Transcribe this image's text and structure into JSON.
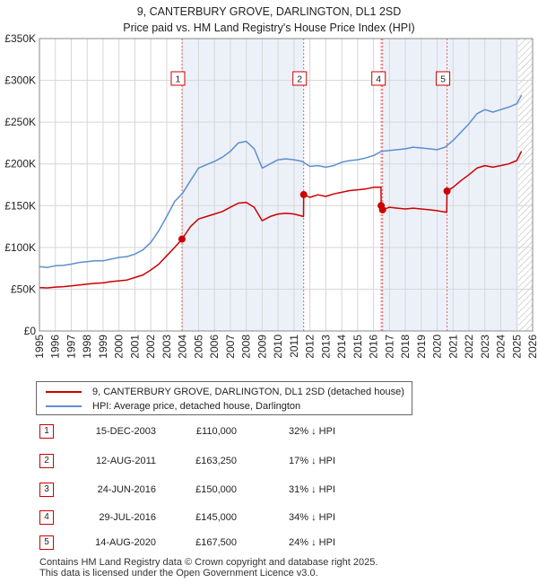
{
  "chart_data": {
    "type": "line",
    "title": "9, CANTERBURY GROVE, DARLINGTON, DL1 2SD",
    "subtitle": "Price paid vs. HM Land Registry's House Price Index (HPI)",
    "xlim": [
      1995,
      2026
    ],
    "ylim": [
      0,
      350000
    ],
    "x_ticks": [
      "1995",
      "1996",
      "1997",
      "1998",
      "1999",
      "2000",
      "2001",
      "2002",
      "2003",
      "2004",
      "2005",
      "2006",
      "2007",
      "2008",
      "2009",
      "2010",
      "2011",
      "2012",
      "2013",
      "2014",
      "2015",
      "2016",
      "2017",
      "2018",
      "2019",
      "2020",
      "2021",
      "2022",
      "2023",
      "2024",
      "2025",
      "2026"
    ],
    "y_ticks": [
      {
        "value": 0,
        "label": "£0"
      },
      {
        "value": 50000,
        "label": "£50K"
      },
      {
        "value": 100000,
        "label": "£100K"
      },
      {
        "value": 150000,
        "label": "£150K"
      },
      {
        "value": 200000,
        "label": "£200K"
      },
      {
        "value": 250000,
        "label": "£250K"
      },
      {
        "value": 300000,
        "label": "£300K"
      },
      {
        "value": 350000,
        "label": "£350K"
      }
    ],
    "grid": true,
    "forecast_start": 2025.1,
    "series": [
      {
        "name": "9, CANTERBURY GROVE, DARLINGTON, DL1 2SD (detached house)",
        "color": "#cc0000",
        "points": [
          [
            1995.0,
            52000
          ],
          [
            1995.5,
            51500
          ],
          [
            1996.0,
            52500
          ],
          [
            1996.5,
            53000
          ],
          [
            1997.0,
            54000
          ],
          [
            1997.5,
            55000
          ],
          [
            1998.0,
            56000
          ],
          [
            1998.5,
            57000
          ],
          [
            1999.0,
            57500
          ],
          [
            1999.5,
            59000
          ],
          [
            2000.0,
            60000
          ],
          [
            2000.5,
            61000
          ],
          [
            2001.0,
            64000
          ],
          [
            2001.5,
            67000
          ],
          [
            2002.0,
            73000
          ],
          [
            2002.5,
            80000
          ],
          [
            2003.0,
            90000
          ],
          [
            2003.5,
            100000
          ],
          [
            2003.96,
            110000
          ],
          [
            2004.5,
            125000
          ],
          [
            2005.0,
            134000
          ],
          [
            2005.5,
            137000
          ],
          [
            2006.0,
            140000
          ],
          [
            2006.5,
            143000
          ],
          [
            2007.0,
            148000
          ],
          [
            2007.5,
            153000
          ],
          [
            2008.0,
            154000
          ],
          [
            2008.5,
            148000
          ],
          [
            2009.0,
            132000
          ],
          [
            2009.5,
            137000
          ],
          [
            2010.0,
            140000
          ],
          [
            2010.5,
            141000
          ],
          [
            2011.0,
            140000
          ],
          [
            2011.6,
            137000
          ],
          [
            2011.61,
            163250
          ],
          [
            2012.0,
            160000
          ],
          [
            2012.5,
            163000
          ],
          [
            2013.0,
            161000
          ],
          [
            2013.5,
            164000
          ],
          [
            2014.0,
            166000
          ],
          [
            2014.5,
            168000
          ],
          [
            2015.0,
            169000
          ],
          [
            2015.5,
            170000
          ],
          [
            2016.0,
            172000
          ],
          [
            2016.47,
            172000
          ],
          [
            2016.48,
            150000
          ],
          [
            2016.57,
            145000
          ],
          [
            2017.0,
            148000
          ],
          [
            2017.5,
            147000
          ],
          [
            2018.0,
            146000
          ],
          [
            2018.5,
            147000
          ],
          [
            2019.0,
            146000
          ],
          [
            2019.5,
            145000
          ],
          [
            2020.0,
            144000
          ],
          [
            2020.6,
            142000
          ],
          [
            2020.62,
            167500
          ],
          [
            2021.0,
            172000
          ],
          [
            2021.5,
            180000
          ],
          [
            2022.0,
            187000
          ],
          [
            2022.5,
            195000
          ],
          [
            2023.0,
            198000
          ],
          [
            2023.5,
            196000
          ],
          [
            2024.0,
            198000
          ],
          [
            2024.5,
            200000
          ],
          [
            2025.0,
            204000
          ],
          [
            2025.3,
            215000
          ]
        ]
      },
      {
        "name": "HPI: Average price, detached house, Darlington",
        "color": "#5b8fd1",
        "points": [
          [
            1995.0,
            77000
          ],
          [
            1995.5,
            76000
          ],
          [
            1996.0,
            78000
          ],
          [
            1996.5,
            78500
          ],
          [
            1997.0,
            80000
          ],
          [
            1997.5,
            82000
          ],
          [
            1998.0,
            83000
          ],
          [
            1998.5,
            84000
          ],
          [
            1999.0,
            84000
          ],
          [
            1999.5,
            86000
          ],
          [
            2000.0,
            88000
          ],
          [
            2000.5,
            89000
          ],
          [
            2001.0,
            92000
          ],
          [
            2001.5,
            97000
          ],
          [
            2002.0,
            106000
          ],
          [
            2002.5,
            120000
          ],
          [
            2003.0,
            137000
          ],
          [
            2003.5,
            155000
          ],
          [
            2004.0,
            165000
          ],
          [
            2004.5,
            180000
          ],
          [
            2005.0,
            195000
          ],
          [
            2005.5,
            199000
          ],
          [
            2006.0,
            203000
          ],
          [
            2006.5,
            208000
          ],
          [
            2007.0,
            215000
          ],
          [
            2007.5,
            225000
          ],
          [
            2008.0,
            227000
          ],
          [
            2008.5,
            218000
          ],
          [
            2009.0,
            195000
          ],
          [
            2009.5,
            200000
          ],
          [
            2010.0,
            205000
          ],
          [
            2010.5,
            206000
          ],
          [
            2011.0,
            205000
          ],
          [
            2011.5,
            203000
          ],
          [
            2012.0,
            197000
          ],
          [
            2012.5,
            198000
          ],
          [
            2013.0,
            196000
          ],
          [
            2013.5,
            198000
          ],
          [
            2014.0,
            202000
          ],
          [
            2014.5,
            204000
          ],
          [
            2015.0,
            205000
          ],
          [
            2015.5,
            207000
          ],
          [
            2016.0,
            210000
          ],
          [
            2016.5,
            215000
          ],
          [
            2017.0,
            216000
          ],
          [
            2017.5,
            217000
          ],
          [
            2018.0,
            218000
          ],
          [
            2018.5,
            220000
          ],
          [
            2019.0,
            219000
          ],
          [
            2019.5,
            218000
          ],
          [
            2020.0,
            217000
          ],
          [
            2020.5,
            220000
          ],
          [
            2021.0,
            228000
          ],
          [
            2021.5,
            238000
          ],
          [
            2022.0,
            248000
          ],
          [
            2022.5,
            260000
          ],
          [
            2023.0,
            265000
          ],
          [
            2023.5,
            262000
          ],
          [
            2024.0,
            265000
          ],
          [
            2024.5,
            268000
          ],
          [
            2025.0,
            272000
          ],
          [
            2025.3,
            282000
          ]
        ]
      }
    ],
    "sales": [
      {
        "id": "1",
        "x": 2003.96,
        "price": 110000
      },
      {
        "id": "2",
        "x": 2011.61,
        "price": 163250
      },
      {
        "id": "3",
        "x": 2016.48,
        "price": 150000
      },
      {
        "id": "4",
        "x": 2016.57,
        "price": 145000
      },
      {
        "id": "5",
        "x": 2020.62,
        "price": 167500
      }
    ],
    "annotation_labels": [
      {
        "id": "1",
        "x": 2003.96
      },
      {
        "id": "2",
        "x": 2011.61
      },
      {
        "id": "4",
        "x": 2016.57
      },
      {
        "id": "5",
        "x": 2020.62
      }
    ]
  },
  "legend": {
    "property_label": "9, CANTERBURY GROVE, DARLINGTON, DL1 2SD (detached house)",
    "hpi_label": "HPI: Average price, detached house, Darlington",
    "property_color": "#cc0000",
    "hpi_color": "#5b8fd1"
  },
  "transactions": [
    {
      "num": "1",
      "date": "15-DEC-2003",
      "price": "£110,000",
      "hpi": "32% ↓ HPI"
    },
    {
      "num": "2",
      "date": "12-AUG-2011",
      "price": "£163,250",
      "hpi": "17% ↓ HPI"
    },
    {
      "num": "3",
      "date": "24-JUN-2016",
      "price": "£150,000",
      "hpi": "31% ↓ HPI"
    },
    {
      "num": "4",
      "date": "29-JUL-2016",
      "price": "£145,000",
      "hpi": "34% ↓ HPI"
    },
    {
      "num": "5",
      "date": "14-AUG-2020",
      "price": "£167,500",
      "hpi": "24% ↓ HPI"
    }
  ],
  "footer": {
    "line1": "Contains HM Land Registry data © Crown copyright and database right 2025.",
    "line2": "This data is licensed under the Open Government Licence v3.0."
  }
}
